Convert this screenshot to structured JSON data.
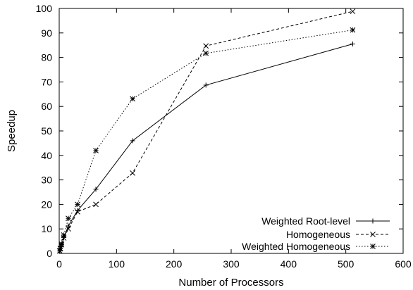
{
  "chart_data": {
    "type": "line",
    "title": "",
    "xlabel": "Number of Processors",
    "ylabel": "Speedup",
    "xlim": [
      0,
      600
    ],
    "ylim": [
      0,
      100
    ],
    "xticks": [
      0,
      100,
      200,
      300,
      400,
      500,
      600
    ],
    "yticks": [
      0,
      10,
      20,
      30,
      40,
      50,
      60,
      70,
      80,
      90,
      100
    ],
    "grid": false,
    "legend_position": "bottom-right",
    "series": [
      {
        "name": "Weighted Root-level",
        "line_style": "solid",
        "marker": "plus",
        "points": [
          {
            "x": 1,
            "y": 1
          },
          {
            "x": 2,
            "y": 1.9
          },
          {
            "x": 4,
            "y": 3.6
          },
          {
            "x": 8,
            "y": 6.5
          },
          {
            "x": 16,
            "y": 11.2
          },
          {
            "x": 32,
            "y": 17.5
          },
          {
            "x": 64,
            "y": 26.2
          },
          {
            "x": 128,
            "y": 46
          },
          {
            "x": 256,
            "y": 68.7
          },
          {
            "x": 512,
            "y": 85.5
          }
        ]
      },
      {
        "name": "Homogeneous",
        "line_style": "dashed",
        "marker": "x",
        "points": [
          {
            "x": 1,
            "y": 1
          },
          {
            "x": 2,
            "y": 1.9
          },
          {
            "x": 4,
            "y": 3.5
          },
          {
            "x": 8,
            "y": 6.3
          },
          {
            "x": 16,
            "y": 10
          },
          {
            "x": 32,
            "y": 17
          },
          {
            "x": 64,
            "y": 20
          },
          {
            "x": 128,
            "y": 32.8
          },
          {
            "x": 256,
            "y": 84.7
          },
          {
            "x": 512,
            "y": 98.8
          }
        ]
      },
      {
        "name": "Weighted Homogeneous",
        "line_style": "dotted",
        "marker": "star",
        "points": [
          {
            "x": 1,
            "y": 1
          },
          {
            "x": 2,
            "y": 2
          },
          {
            "x": 4,
            "y": 3.9
          },
          {
            "x": 8,
            "y": 7.5
          },
          {
            "x": 16,
            "y": 14.3
          },
          {
            "x": 32,
            "y": 20
          },
          {
            "x": 64,
            "y": 42
          },
          {
            "x": 128,
            "y": 63.1
          },
          {
            "x": 256,
            "y": 81.7
          },
          {
            "x": 512,
            "y": 91.2
          }
        ]
      }
    ]
  }
}
